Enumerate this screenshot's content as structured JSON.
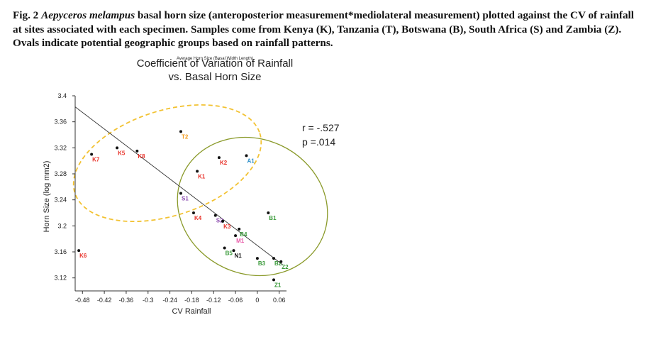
{
  "caption": {
    "fig_label": "Fig. 2",
    "species": "Aepyceros melampus",
    "text": "basal horn size (anteroposterior measurement*mediolateral measurement) plotted against the CV of rainfall at sites associated with each specimen. Samples come from Kenya (K), Tanzania (T), Botswana (B), South Africa (S) and Zambia (Z).  Ovals indicate potential geographic groups based on rainfall patterns."
  },
  "chart_data": {
    "type": "scatter",
    "title_line1": "Coefficient of Variation of Rainfall",
    "title_line2": "vs. Basal Horn Size",
    "clipped_header": "Average Horn Size (Basal Width Length)",
    "xlabel": "CV Rainfall",
    "ylabel": "Horn Size (log mm2)",
    "xlim": [
      -0.5,
      0.08
    ],
    "ylim": [
      3.1,
      3.4
    ],
    "x_ticks": [
      -0.48,
      -0.42,
      -0.36,
      -0.3,
      -0.24,
      -0.18,
      -0.12,
      -0.06,
      0,
      0.06
    ],
    "x_tick_labels": [
      "-0.48",
      "-0.42",
      "-0.36",
      "-0.3",
      "-0.24",
      "-0.18",
      "-0.12",
      "-0.06",
      "0",
      "0.06"
    ],
    "y_ticks": [
      3.12,
      3.16,
      3.2,
      3.24,
      3.28,
      3.32,
      3.36,
      3.4
    ],
    "y_tick_labels": [
      "3.12",
      "3.16",
      "3.2",
      "3.24",
      "3.28",
      "3.32",
      "3.36",
      "3.4"
    ],
    "stats": {
      "r": "r = -.527",
      "p": "p =.014"
    },
    "regression": {
      "x1": -0.5,
      "y1": 3.383,
      "x2": 0.07,
      "y2": 3.14
    },
    "colors": {
      "kenya": "#e8322a",
      "tanzania": "#f39c1f",
      "botswana": "#3a9a3a",
      "south_africa": "#8e4fb0",
      "zambia": "#3a9a3a",
      "a1": "#2d8fc9",
      "m1": "#e85aa8",
      "n1": "#111111",
      "outlined_oval": "#8a9a2a",
      "dashed_oval": "#f2c232"
    },
    "points": [
      {
        "label": "K6",
        "x": -0.49,
        "y": 3.162,
        "color": "#e8322a"
      },
      {
        "label": "K7",
        "x": -0.455,
        "y": 3.31,
        "color": "#e8322a"
      },
      {
        "label": "K5",
        "x": -0.385,
        "y": 3.32,
        "color": "#e8322a"
      },
      {
        "label": "K8",
        "x": -0.33,
        "y": 3.315,
        "color": "#e8322a"
      },
      {
        "label": "T2",
        "x": -0.21,
        "y": 3.345,
        "color": "#f39c1f"
      },
      {
        "label": "K1",
        "x": -0.165,
        "y": 3.284,
        "color": "#e8322a"
      },
      {
        "label": "K2",
        "x": -0.105,
        "y": 3.305,
        "color": "#e8322a"
      },
      {
        "label": "A1",
        "x": -0.03,
        "y": 3.308,
        "color": "#2d8fc9"
      },
      {
        "label": "S1",
        "x": -0.21,
        "y": 3.25,
        "color": "#8e4fb0"
      },
      {
        "label": "K4",
        "x": -0.175,
        "y": 3.22,
        "color": "#e8322a"
      },
      {
        "label": "S2",
        "x": -0.115,
        "y": 3.216,
        "color": "#8e4fb0"
      },
      {
        "label": "K3",
        "x": -0.095,
        "y": 3.207,
        "color": "#e8322a"
      },
      {
        "label": "B4",
        "x": -0.05,
        "y": 3.195,
        "color": "#3a9a3a"
      },
      {
        "label": "M1",
        "x": -0.06,
        "y": 3.185,
        "color": "#e85aa8"
      },
      {
        "label": "B5",
        "x": -0.09,
        "y": 3.166,
        "color": "#3a9a3a"
      },
      {
        "label": "N1",
        "x": -0.065,
        "y": 3.162,
        "color": "#111111"
      },
      {
        "label": "B1",
        "x": 0.03,
        "y": 3.22,
        "color": "#3a9a3a"
      },
      {
        "label": "B3",
        "x": 0.0,
        "y": 3.15,
        "color": "#3a9a3a"
      },
      {
        "label": "B2",
        "x": 0.045,
        "y": 3.15,
        "color": "#3a9a3a"
      },
      {
        "label": "Z2",
        "x": 0.065,
        "y": 3.145,
        "color": "#3a9a3a"
      },
      {
        "label": "Z1",
        "x": 0.045,
        "y": 3.117,
        "color": "#3a9a3a"
      }
    ]
  }
}
